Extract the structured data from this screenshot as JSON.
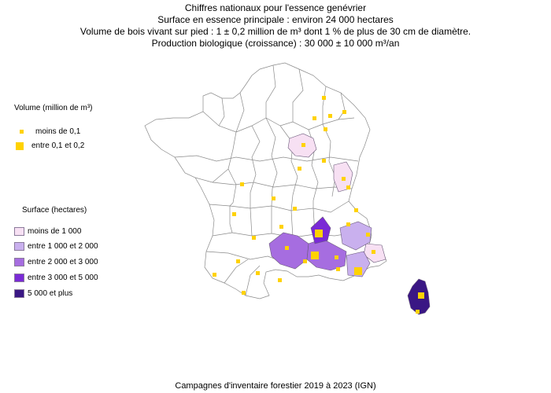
{
  "titles": {
    "line1": "Chiffres nationaux pour l'essence genévrier",
    "line2": "Surface en essence principale : environ 24 000 hectares",
    "line3": "Volume de bois vivant sur pied : 1 ± 0,2 million de m³ dont 1 % de plus de 30 cm de diamètre.",
    "line4": "Production biologique (croissance) : 30 000 ± 10 000 m³/an"
  },
  "volume_legend": {
    "title": "Volume (million de m³)",
    "items": [
      {
        "label": "moins de 0,1",
        "color": "#ffd200"
      },
      {
        "label": "entre 0,1 et 0,2",
        "color": "#ffd200"
      }
    ]
  },
  "surface_legend": {
    "title": "Surface (hectares)",
    "items": [
      {
        "label": "moins de 1 000",
        "color": "#f7e0f3"
      },
      {
        "label": "entre 1 000 et 2 000",
        "color": "#c9b0ee"
      },
      {
        "label": "entre 2 000 et 3 000",
        "color": "#a66de0"
      },
      {
        "label": "entre 3 000 et 5 000",
        "color": "#7a2ad6"
      },
      {
        "label": "5 000 et plus",
        "color": "#3a1784"
      }
    ]
  },
  "footer": "Campagnes d'inventaire forestier 2019 à 2023 (IGN)"
}
